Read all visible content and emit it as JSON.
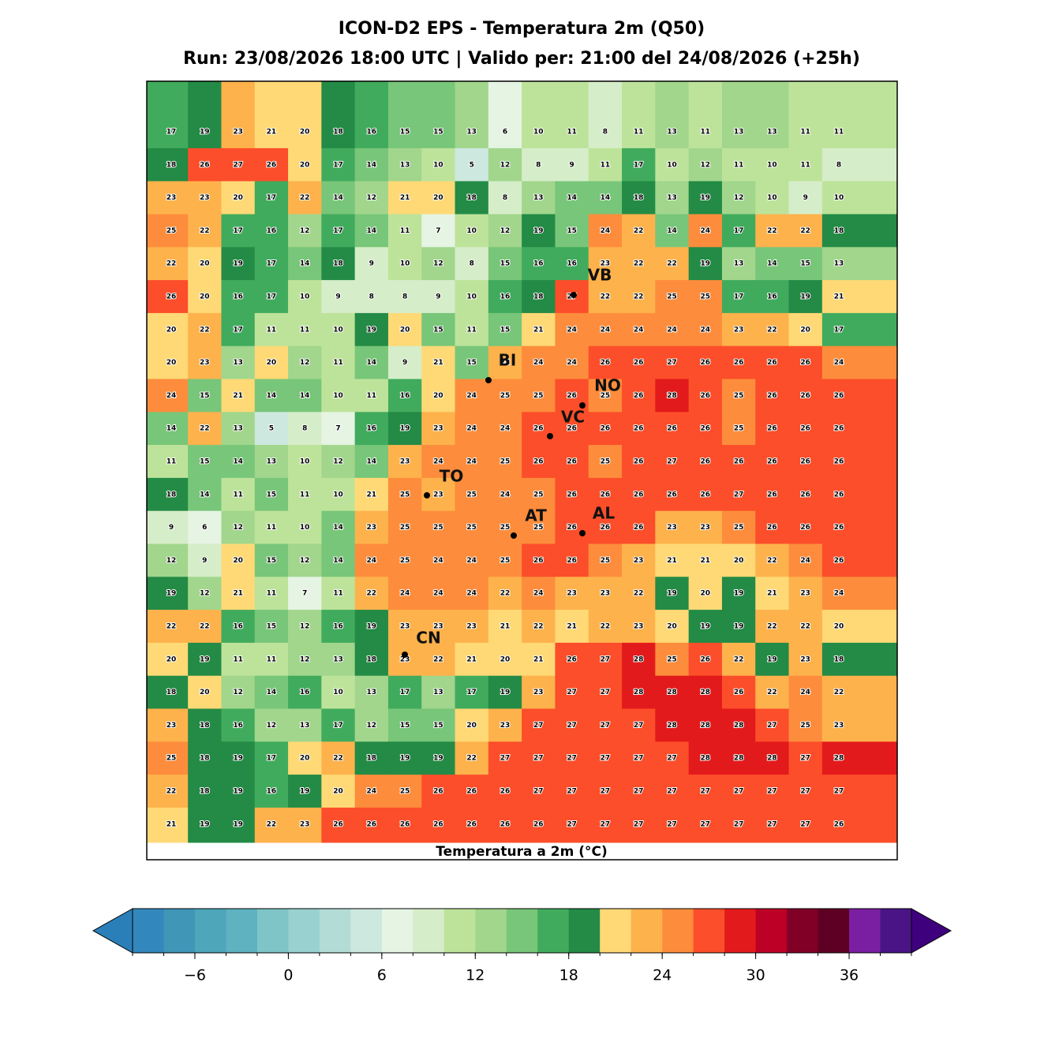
{
  "chart_data": {
    "type": "grid-map",
    "title": "ICON-D2 EPS - Temperatura 2m (Q50)",
    "subtitle": "Run: 23/08/2026 18:00 UTC | Valido per: 21:00 del 24/08/2026 (+25h)",
    "grid": [
      [
        17,
        19,
        23,
        21,
        20,
        18,
        16,
        15,
        15,
        13,
        6,
        10,
        11,
        8,
        11,
        13,
        11,
        13,
        13,
        11,
        11
      ],
      [
        18,
        26,
        27,
        26,
        20,
        17,
        14,
        13,
        10,
        5,
        12,
        8,
        9,
        11,
        17,
        10,
        12,
        11,
        10,
        11,
        8
      ],
      [
        23,
        23,
        20,
        17,
        22,
        14,
        12,
        21,
        20,
        18,
        8,
        13,
        14,
        14,
        18,
        13,
        19,
        12,
        10,
        9,
        10
      ],
      [
        25,
        22,
        17,
        16,
        12,
        17,
        14,
        11,
        7,
        10,
        12,
        19,
        15,
        24,
        22,
        14,
        24,
        17,
        22,
        22,
        18
      ],
      [
        22,
        20,
        19,
        17,
        14,
        18,
        9,
        10,
        12,
        8,
        15,
        16,
        16,
        23,
        22,
        22,
        19,
        13,
        14,
        15,
        13
      ],
      [
        26,
        20,
        16,
        17,
        10,
        9,
        8,
        8,
        9,
        10,
        16,
        18,
        27,
        22,
        22,
        25,
        25,
        17,
        16,
        19,
        21
      ],
      [
        20,
        22,
        17,
        11,
        11,
        10,
        19,
        20,
        15,
        11,
        15,
        21,
        24,
        24,
        24,
        24,
        24,
        23,
        22,
        20,
        17
      ],
      [
        20,
        23,
        13,
        20,
        12,
        11,
        14,
        9,
        21,
        15,
        22,
        24,
        24,
        26,
        26,
        27,
        26,
        26,
        26,
        26,
        24
      ],
      [
        24,
        15,
        21,
        14,
        14,
        10,
        11,
        16,
        20,
        24,
        25,
        25,
        26,
        25,
        26,
        28,
        26,
        25,
        26,
        26,
        26
      ],
      [
        14,
        22,
        13,
        5,
        8,
        7,
        16,
        19,
        23,
        24,
        24,
        26,
        26,
        26,
        26,
        26,
        26,
        25,
        26,
        26,
        26
      ],
      [
        11,
        15,
        14,
        13,
        10,
        12,
        14,
        23,
        24,
        24,
        25,
        26,
        26,
        25,
        26,
        27,
        26,
        26,
        26,
        26,
        26
      ],
      [
        18,
        14,
        11,
        15,
        11,
        10,
        21,
        25,
        23,
        25,
        24,
        25,
        26,
        26,
        26,
        26,
        26,
        27,
        26,
        26,
        26
      ],
      [
        9,
        6,
        12,
        11,
        10,
        14,
        23,
        25,
        25,
        25,
        25,
        25,
        26,
        26,
        26,
        23,
        23,
        25,
        26,
        26,
        26
      ],
      [
        12,
        9,
        20,
        15,
        12,
        14,
        24,
        25,
        24,
        24,
        25,
        26,
        26,
        25,
        23,
        21,
        21,
        20,
        22,
        24,
        26
      ],
      [
        19,
        12,
        21,
        11,
        7,
        11,
        22,
        24,
        24,
        24,
        22,
        24,
        23,
        23,
        22,
        19,
        20,
        19,
        21,
        23,
        24
      ],
      [
        22,
        22,
        16,
        15,
        12,
        16,
        19,
        23,
        23,
        23,
        21,
        22,
        21,
        22,
        23,
        20,
        19,
        19,
        22,
        22,
        20
      ],
      [
        20,
        19,
        11,
        11,
        12,
        13,
        18,
        23,
        22,
        21,
        20,
        21,
        26,
        27,
        28,
        25,
        26,
        22,
        19,
        23,
        18
      ],
      [
        18,
        20,
        12,
        14,
        16,
        10,
        13,
        17,
        13,
        17,
        19,
        23,
        27,
        27,
        28,
        28,
        28,
        26,
        22,
        24,
        22
      ],
      [
        23,
        18,
        16,
        12,
        13,
        17,
        12,
        15,
        15,
        20,
        23,
        27,
        27,
        27,
        27,
        28,
        28,
        28,
        27,
        25,
        23
      ],
      [
        25,
        18,
        19,
        17,
        20,
        22,
        18,
        19,
        19,
        22,
        27,
        27,
        27,
        27,
        27,
        27,
        28,
        28,
        28,
        27,
        28
      ],
      [
        22,
        18,
        19,
        16,
        19,
        20,
        24,
        25,
        26,
        26,
        26,
        27,
        27,
        27,
        27,
        27,
        27,
        27,
        27,
        27,
        27
      ],
      [
        21,
        19,
        19,
        22,
        23,
        26,
        26,
        26,
        26,
        26,
        26,
        26,
        27,
        27,
        27,
        27,
        27,
        27,
        27,
        27,
        26
      ]
    ],
    "cities": [
      "VB",
      "BI",
      "NO",
      "VC",
      "TO",
      "AT",
      "AL",
      "CN"
    ],
    "colorbar": {
      "label": "Temperatura a 2m (°C)",
      "levels": [
        -10,
        -8,
        -6,
        -4,
        -2,
        0,
        2,
        4,
        6,
        8,
        10,
        12,
        14,
        16,
        18,
        20,
        22,
        24,
        26,
        28,
        30,
        32,
        34,
        36,
        38,
        40
      ],
      "colors": [
        "#3288bd",
        "#3f96b7",
        "#4da6ba",
        "#5fb2c0",
        "#7fc4c7",
        "#98d1cf",
        "#b3dcd6",
        "#cde8de",
        "#e5f4e3",
        "#d6edc9",
        "#bde39a",
        "#a1d68c",
        "#78c679",
        "#41ab5d",
        "#238b45",
        "#fed976",
        "#feb24c",
        "#fd8d3c",
        "#fc4e2a",
        "#e31a1c",
        "#bd0026",
        "#800026",
        "#5e0023",
        "#7b1fa2",
        "#4a1486"
      ],
      "under": "#2b7fb8",
      "over": "#3f007d",
      "ticks": [
        {
          "value": -6,
          "label": "−6"
        },
        0,
        6,
        12,
        18,
        24,
        30,
        36
      ]
    }
  }
}
